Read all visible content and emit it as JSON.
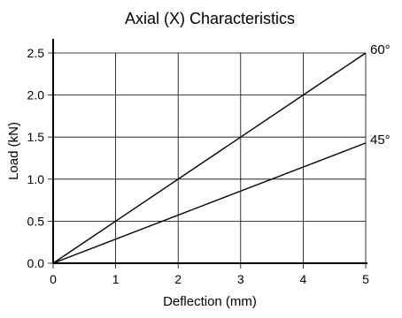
{
  "chart_data": {
    "type": "line",
    "title": "Axial (X) Characteristics",
    "xlabel": "Deflection (mm)",
    "ylabel": "Load (kN)",
    "xlim": [
      0,
      5
    ],
    "ylim": [
      0,
      2.5
    ],
    "xticks": [
      0,
      1,
      2,
      3,
      4,
      5
    ],
    "xtick_labels": [
      "0",
      "1",
      "2",
      "3",
      "4",
      "5"
    ],
    "yticks": [
      0,
      0.5,
      1.0,
      1.5,
      2.0,
      2.5
    ],
    "ytick_labels": [
      "0.0",
      "0.5",
      "1.0",
      "1.5",
      "2.0",
      "2.5"
    ],
    "grid": true,
    "series": [
      {
        "name": "60°",
        "x": [
          0,
          5
        ],
        "y": [
          0,
          2.5
        ]
      },
      {
        "name": "45°",
        "x": [
          0,
          5
        ],
        "y": [
          0,
          1.43
        ]
      }
    ]
  }
}
